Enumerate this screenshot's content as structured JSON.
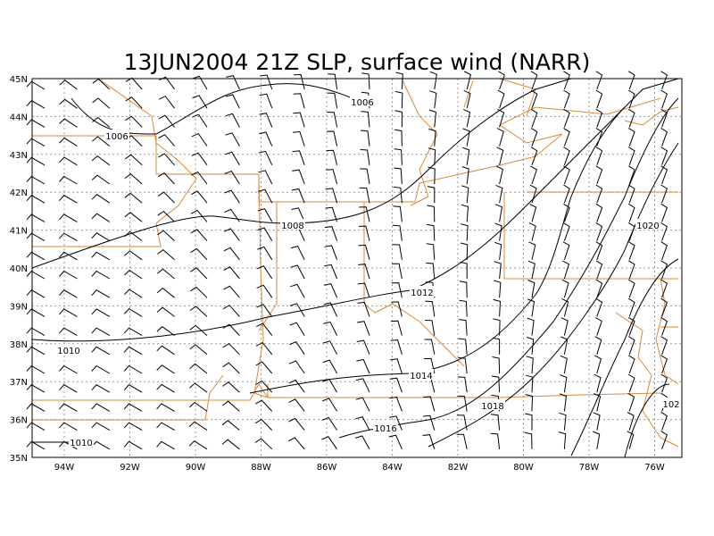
{
  "title": "13JUN2004 21Z SLP, surface wind (NARR)",
  "lat_labels": [
    "45N",
    "44N",
    "43N",
    "42N",
    "41N",
    "40N",
    "39N",
    "38N",
    "37N",
    "36N",
    "35N"
  ],
  "lon_labels": [
    "94W",
    "92W",
    "90W",
    "88W",
    "86W",
    "84W",
    "82W",
    "80W",
    "78W",
    "76W"
  ],
  "contour_labels": [
    "1006",
    "1006",
    "1008",
    "1010",
    "1012",
    "1014",
    "1016",
    "1018",
    "1020",
    "1010",
    "102"
  ]
}
